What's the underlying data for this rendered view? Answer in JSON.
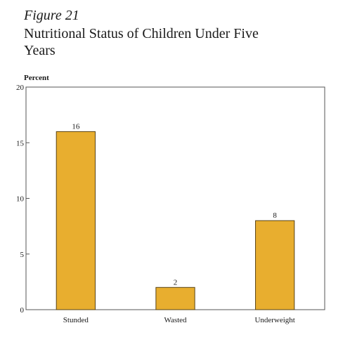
{
  "figure": {
    "label": "Figure 21",
    "title_lines": [
      "Nutritional Status of Children Under Five",
      "Years"
    ]
  },
  "chart_data": {
    "type": "bar",
    "title": "Nutritional Status of Children Under Five Years",
    "ylabel": "Percent",
    "xlabel": "",
    "categories": [
      "Stunded",
      "Wasted",
      "Underweight"
    ],
    "values": [
      16,
      2,
      8
    ],
    "data_labels": [
      "16",
      "2",
      "8"
    ],
    "ylim": [
      0,
      20
    ],
    "yticks": [
      0,
      5,
      10,
      15,
      20
    ],
    "ytick_labels": [
      "0",
      "5",
      "10",
      "15",
      "20"
    ],
    "grid": false,
    "legend": "none",
    "bar_color": "#E8AE2F",
    "bar_edge_color": "#5a4414"
  }
}
